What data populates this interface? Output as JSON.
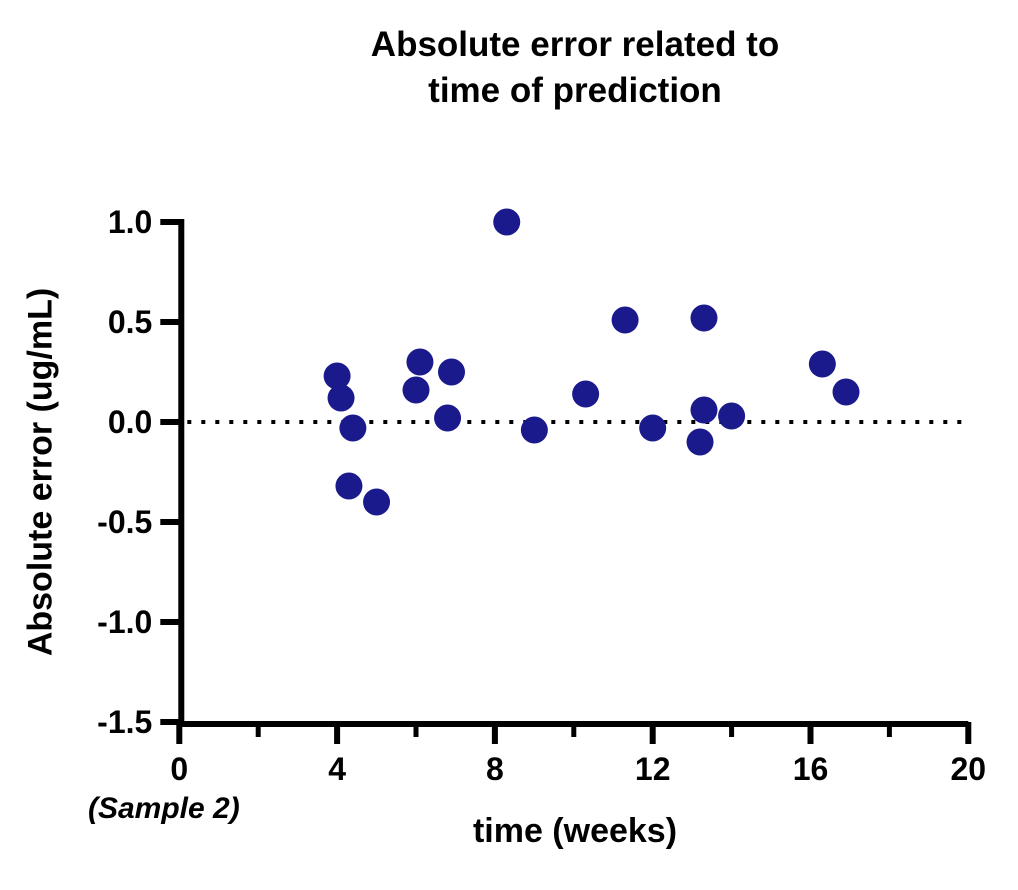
{
  "title": {
    "line1": "Absolute error related to",
    "line2": "time of prediction"
  },
  "chart_data": {
    "type": "scatter",
    "title": "Absolute error related to time of prediction",
    "xlabel": "time (weeks)",
    "ylabel": "Absolute error (ug/mL)",
    "annotation": "(Sample 2)",
    "xlim": [
      0,
      20
    ],
    "ylim": [
      -1.5,
      1.0
    ],
    "x_major_ticks": [
      0,
      4,
      8,
      12,
      16,
      20
    ],
    "x_tick_labels": [
      "0",
      "4",
      "8",
      "12",
      "16",
      "20"
    ],
    "x_minor_ticks": [
      2,
      6,
      10,
      14,
      18
    ],
    "y_ticks": [
      1.0,
      0.5,
      0.0,
      -0.5,
      -1.0,
      -1.5
    ],
    "y_tick_labels": [
      "1.0",
      "0.5",
      "0.0",
      "-0.5",
      "-1.0",
      "-1.5"
    ],
    "grid": false,
    "legend": false,
    "zero_line": {
      "y": 0.0,
      "style": "dotted",
      "color": "#000000"
    },
    "point_color": "#1a1a8c",
    "axis_color": "#000000",
    "series": [
      {
        "name": "absolute error",
        "points": [
          [
            4.0,
            0.23
          ],
          [
            4.1,
            0.12
          ],
          [
            4.3,
            -0.32
          ],
          [
            4.4,
            -0.03
          ],
          [
            5.0,
            -0.4
          ],
          [
            6.0,
            0.16
          ],
          [
            6.1,
            0.3
          ],
          [
            6.8,
            0.02
          ],
          [
            6.9,
            0.25
          ],
          [
            8.3,
            1.0
          ],
          [
            9.0,
            -0.04
          ],
          [
            10.3,
            0.14
          ],
          [
            11.3,
            0.51
          ],
          [
            12.0,
            -0.03
          ],
          [
            13.2,
            -0.1
          ],
          [
            13.3,
            0.52
          ],
          [
            13.3,
            0.06
          ],
          [
            14.0,
            0.03
          ],
          [
            16.3,
            0.29
          ],
          [
            16.9,
            0.15
          ]
        ]
      }
    ]
  }
}
